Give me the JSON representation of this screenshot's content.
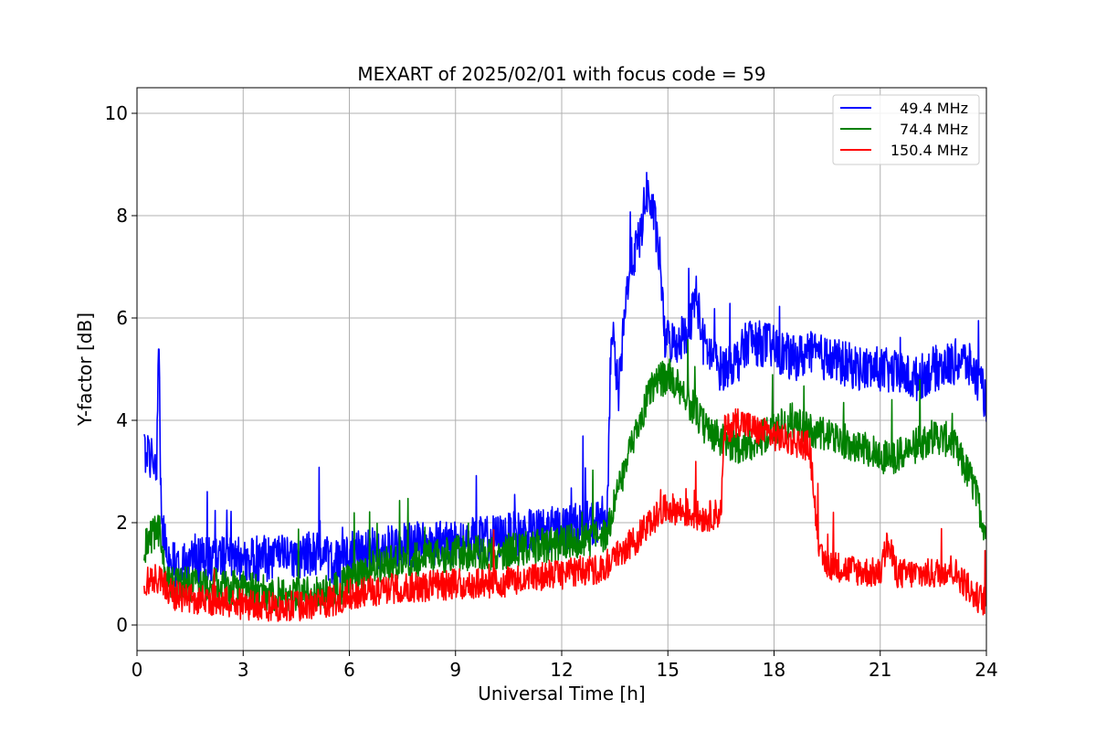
{
  "chart_data": {
    "type": "line",
    "title": "MEXART of 2025/02/01 with focus code = 59",
    "xlabel": "Universal Time [h]",
    "ylabel": "Y-factor [dB]",
    "xlim": [
      0,
      24
    ],
    "ylim": [
      -0.5,
      10.5
    ],
    "xticks": [
      0,
      3,
      6,
      9,
      12,
      15,
      18,
      21,
      24
    ],
    "yticks": [
      0,
      2,
      4,
      6,
      8,
      10
    ],
    "grid": true,
    "legend_position": "top-right",
    "series": [
      {
        "name": "49.4 MHz",
        "color": "#0000ff",
        "noise": 0.45,
        "x": [
          0.2,
          0.4,
          0.55,
          0.62,
          0.65,
          0.7,
          0.8,
          1.0,
          1.5,
          2.0,
          3.0,
          4.0,
          5.0,
          5.7,
          6.0,
          7.0,
          8.0,
          9.0,
          10.0,
          11.0,
          12.0,
          13.0,
          13.3,
          13.4,
          13.6,
          13.9,
          14.2,
          14.4,
          14.6,
          14.8,
          14.9,
          15.2,
          15.6,
          15.8,
          16.0,
          16.2,
          16.5,
          17.0,
          17.3,
          17.5,
          17.8,
          18.0,
          18.5,
          19.0,
          19.5,
          20.0,
          20.5,
          21.0,
          21.5,
          22.0,
          22.5,
          23.0,
          23.3,
          23.6,
          24.0
        ],
        "y": [
          3.4,
          3.3,
          3.0,
          5.9,
          3.5,
          2.0,
          1.5,
          1.2,
          1.2,
          1.3,
          1.3,
          1.3,
          1.4,
          1.2,
          1.4,
          1.5,
          1.6,
          1.6,
          1.7,
          1.8,
          1.9,
          2.0,
          2.2,
          6.0,
          4.5,
          7.0,
          7.5,
          8.5,
          8.0,
          7.0,
          5.6,
          5.5,
          5.8,
          6.5,
          5.5,
          5.3,
          5.0,
          5.2,
          5.6,
          5.5,
          5.5,
          5.4,
          5.2,
          5.3,
          5.2,
          5.1,
          5.0,
          5.0,
          4.9,
          4.8,
          5.0,
          5.1,
          5.2,
          5.0,
          4.4
        ]
      },
      {
        "name": "74.4 MHz",
        "color": "#008000",
        "noise": 0.35,
        "x": [
          0.2,
          0.5,
          0.65,
          0.8,
          1.0,
          1.5,
          2.0,
          3.0,
          4.0,
          5.0,
          5.7,
          6.0,
          7.0,
          8.0,
          9.0,
          10.0,
          11.0,
          12.0,
          13.0,
          13.3,
          13.5,
          14.0,
          14.5,
          15.0,
          15.5,
          16.0,
          16.5,
          17.0,
          17.5,
          18.0,
          18.5,
          19.0,
          19.5,
          20.0,
          20.5,
          21.0,
          21.5,
          22.0,
          22.5,
          23.0,
          23.3,
          23.6,
          24.0
        ],
        "y": [
          1.5,
          1.8,
          1.9,
          1.0,
          0.8,
          0.8,
          0.8,
          0.7,
          0.6,
          0.6,
          0.7,
          0.9,
          1.2,
          1.3,
          1.4,
          1.4,
          1.5,
          1.6,
          1.7,
          1.8,
          2.5,
          3.5,
          4.6,
          4.9,
          4.5,
          3.9,
          3.6,
          3.5,
          3.6,
          3.8,
          4.0,
          3.8,
          3.7,
          3.6,
          3.5,
          3.3,
          3.3,
          3.5,
          3.7,
          3.6,
          3.2,
          2.8,
          1.8
        ]
      },
      {
        "name": "150.4 MHz",
        "color": "#ff0000",
        "noise": 0.3,
        "x": [
          0.2,
          0.5,
          0.8,
          1.0,
          1.5,
          2.0,
          3.0,
          4.0,
          5.0,
          5.7,
          6.0,
          7.0,
          8.0,
          9.0,
          10.0,
          11.0,
          12.0,
          13.0,
          13.3,
          13.6,
          14.0,
          14.5,
          15.0,
          15.5,
          16.0,
          16.5,
          16.6,
          17.0,
          17.5,
          18.0,
          18.5,
          19.0,
          19.3,
          19.5,
          20.0,
          21.0,
          21.2,
          21.5,
          22.0,
          22.5,
          23.0,
          23.3,
          23.6,
          24.0
        ],
        "y": [
          0.8,
          0.9,
          0.8,
          0.6,
          0.5,
          0.5,
          0.4,
          0.35,
          0.4,
          0.5,
          0.6,
          0.7,
          0.75,
          0.8,
          0.8,
          0.9,
          1.0,
          1.1,
          1.2,
          1.4,
          1.6,
          2.0,
          2.3,
          2.2,
          2.1,
          2.2,
          3.8,
          4.0,
          3.8,
          3.7,
          3.6,
          3.5,
          1.3,
          1.2,
          1.1,
          1.0,
          1.6,
          1.0,
          1.0,
          1.0,
          1.1,
          0.9,
          0.6,
          0.45
        ]
      }
    ]
  }
}
